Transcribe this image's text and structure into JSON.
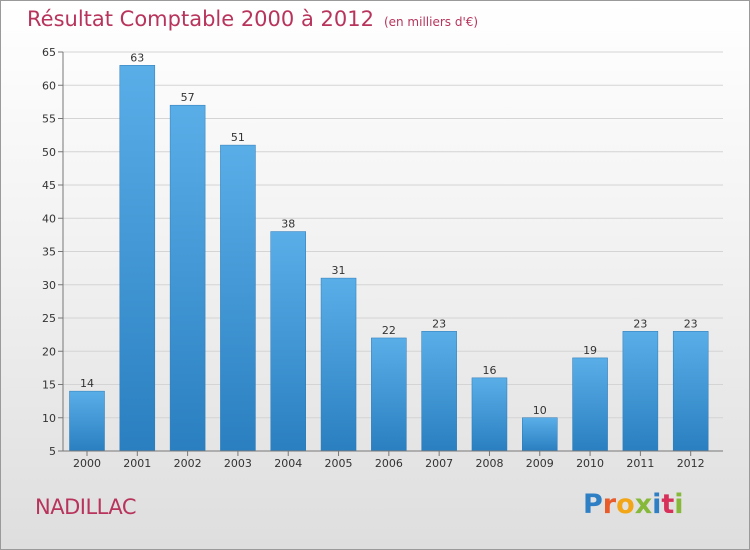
{
  "header": {
    "title": "Résultat Comptable 2000 à 2012",
    "unit": "(en milliers d'€)"
  },
  "footer": {
    "commune": "NADILLAC",
    "logo": "Proxiti"
  },
  "colors": {
    "title": "#b8345c",
    "bar_top": "#5aaee8",
    "bar_bottom": "#2a7fc0"
  },
  "chart_data": {
    "type": "bar",
    "title": "Résultat Comptable 2000 à 2012",
    "xlabel": "",
    "ylabel": "",
    "categories": [
      "2000",
      "2001",
      "2002",
      "2003",
      "2004",
      "2005",
      "2006",
      "2007",
      "2008",
      "2009",
      "2010",
      "2011",
      "2012"
    ],
    "values": [
      14,
      63,
      57,
      51,
      38,
      31,
      22,
      23,
      16,
      10,
      19,
      23,
      23
    ],
    "ylim": [
      5,
      65
    ],
    "yticks": [
      5,
      10,
      15,
      20,
      25,
      30,
      35,
      40,
      45,
      50,
      55,
      60,
      65
    ],
    "grid": true,
    "legend": "none"
  }
}
